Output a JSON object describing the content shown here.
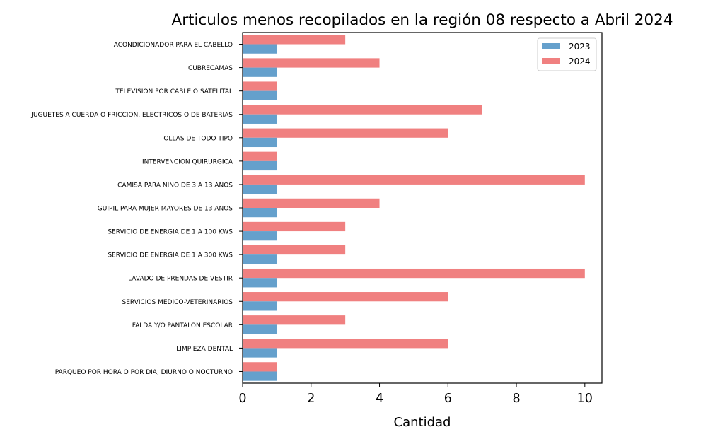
{
  "chart_data": {
    "type": "bar",
    "orientation": "horizontal",
    "title": "Articulos menos recopilados en la región 08 respecto a Abril 2024",
    "xlabel": "Cantidad",
    "ylabel": "",
    "xlim": [
      0,
      10.5
    ],
    "xticks": [
      "0",
      "2",
      "4",
      "6",
      "8",
      "10"
    ],
    "grid": false,
    "legend_position": "top-right",
    "categories": [
      "ACONDICIONADOR PARA EL CABELLO",
      "CUBRECAMAS",
      "TELEVISION POR CABLE O SATELITAL",
      "JUGUETES A CUERDA O FRICCION, ELECTRICOS O DE BATERIAS",
      "OLLAS DE TODO TIPO",
      "INTERVENCION QUIRURGICA",
      "CAMISA PARA NINO DE 3 A 13 ANOS",
      "GUIPIL PARA MUJER MAYORES DE 13 ANOS",
      "SERVICIO DE ENERGIA DE 1 A 100 KWS",
      "SERVICIO DE ENERGIA DE 1 A 300 KWS",
      "LAVADO DE PRENDAS DE VESTIR",
      "SERVICIOS MEDICO-VETERINARIOS",
      "FALDA Y/O PANTALON ESCOLAR",
      "LIMPIEZA DENTAL",
      "PARQUEO POR HORA O POR DIA, DIURNO O NOCTURNO"
    ],
    "series": [
      {
        "name": "2023",
        "color": "#65a0cc",
        "values": [
          1,
          1,
          1,
          1,
          1,
          1,
          1,
          1,
          1,
          1,
          1,
          1,
          1,
          1,
          1
        ]
      },
      {
        "name": "2024",
        "color": "#f08080",
        "values": [
          3,
          4,
          1,
          7,
          6,
          1,
          10,
          4,
          3,
          3,
          10,
          6,
          3,
          6,
          1
        ]
      }
    ]
  }
}
